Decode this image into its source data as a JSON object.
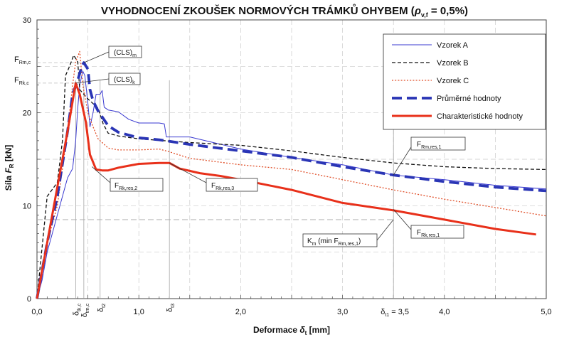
{
  "chart_data": {
    "type": "line",
    "title": "VYHODNOCENÍ ZKOUŠEK NORMOVÝCH TRÁMKŮ OHYBEM",
    "title_suffix": {
      "open": " (",
      "rho": "ρ",
      "rho_sub": "v,f",
      "tail": " = 0,5%)"
    },
    "xlabel": {
      "main": "Deformace ",
      "sym": "δ",
      "sym_sub": "t",
      "unit": " [mm]"
    },
    "ylabel": {
      "main": "Síla ",
      "sym": "F",
      "sym_sub": "R",
      "unit": " [kN]"
    },
    "xlim": [
      0,
      5
    ],
    "ylim": [
      0,
      30
    ],
    "x_ticks": [
      "0,0",
      "1,0",
      "2,0",
      "3,0",
      "4,0",
      "5,0"
    ],
    "y_ticks": [
      "0",
      "10",
      "20",
      "30"
    ],
    "grid": true,
    "legend_position": "top-right",
    "series": [
      {
        "name": "Vzorek A",
        "color": "#3a3ad0",
        "style": "solid-thin",
        "points": [
          [
            0,
            0
          ],
          [
            0.05,
            2
          ],
          [
            0.1,
            5
          ],
          [
            0.15,
            7
          ],
          [
            0.2,
            9
          ],
          [
            0.25,
            11
          ],
          [
            0.3,
            13
          ],
          [
            0.35,
            14
          ],
          [
            0.38,
            17
          ],
          [
            0.4,
            20.5
          ],
          [
            0.42,
            23
          ],
          [
            0.45,
            24.5
          ],
          [
            0.47,
            24
          ],
          [
            0.5,
            21
          ],
          [
            0.52,
            18.5
          ],
          [
            0.55,
            20
          ],
          [
            0.58,
            22
          ],
          [
            0.62,
            22
          ],
          [
            0.64,
            22.4
          ],
          [
            0.66,
            20.6
          ],
          [
            0.7,
            20.3
          ],
          [
            0.8,
            20.1
          ],
          [
            0.9,
            19.3
          ],
          [
            1.0,
            18.9
          ],
          [
            1.2,
            18.9
          ],
          [
            1.25,
            18.8
          ],
          [
            1.27,
            17.4
          ],
          [
            1.5,
            17.4
          ],
          [
            2.0,
            16.1
          ],
          [
            2.5,
            15.2
          ],
          [
            3.0,
            14.4
          ],
          [
            3.5,
            13.3
          ],
          [
            4.0,
            12.8
          ],
          [
            4.5,
            12.2
          ],
          [
            5.0,
            11.8
          ]
        ]
      },
      {
        "name": "Vzorek B",
        "color": "#111111",
        "style": "dashed",
        "points": [
          [
            0,
            0
          ],
          [
            0.1,
            11
          ],
          [
            0.2,
            12.5
          ],
          [
            0.25,
            17
          ],
          [
            0.28,
            24
          ],
          [
            0.32,
            25
          ],
          [
            0.36,
            26.2
          ],
          [
            0.4,
            25.5
          ],
          [
            0.42,
            22.5
          ],
          [
            0.5,
            21.5
          ],
          [
            0.6,
            20.5
          ],
          [
            0.65,
            18.8
          ],
          [
            0.7,
            17.8
          ],
          [
            0.8,
            17.5
          ],
          [
            1.0,
            17.2
          ],
          [
            1.5,
            16.8
          ],
          [
            2.0,
            16.5
          ],
          [
            2.5,
            15.9
          ],
          [
            3.0,
            15.2
          ],
          [
            3.5,
            14.6
          ],
          [
            4.0,
            14.2
          ],
          [
            4.5,
            14.0
          ],
          [
            5.0,
            13.9
          ]
        ]
      },
      {
        "name": "Vzorek C",
        "color": "#e0502a",
        "style": "dotted",
        "points": [
          [
            0,
            0
          ],
          [
            0.1,
            6
          ],
          [
            0.2,
            10
          ],
          [
            0.3,
            18
          ],
          [
            0.35,
            23
          ],
          [
            0.38,
            25.5
          ],
          [
            0.42,
            26.6
          ],
          [
            0.45,
            23
          ],
          [
            0.5,
            20
          ],
          [
            0.55,
            18.5
          ],
          [
            0.6,
            17.2
          ],
          [
            0.7,
            16.2
          ],
          [
            0.8,
            16.0
          ],
          [
            1.0,
            16.0
          ],
          [
            1.2,
            16.1
          ],
          [
            1.3,
            15.8
          ],
          [
            1.5,
            15.1
          ],
          [
            2.0,
            14.4
          ],
          [
            2.5,
            13.9
          ],
          [
            3.0,
            12.8
          ],
          [
            3.5,
            11.7
          ],
          [
            4.0,
            10.7
          ],
          [
            4.5,
            9.8
          ],
          [
            5.0,
            8.9
          ]
        ]
      },
      {
        "name": "Průměrné hodnoty",
        "color": "#2a35b5",
        "style": "dashed-thick",
        "points": [
          [
            0,
            0
          ],
          [
            0.1,
            6
          ],
          [
            0.2,
            11
          ],
          [
            0.3,
            18
          ],
          [
            0.35,
            22
          ],
          [
            0.4,
            23.5
          ],
          [
            0.44,
            25
          ],
          [
            0.46,
            25.4
          ],
          [
            0.5,
            24.7
          ],
          [
            0.52,
            22.5
          ],
          [
            0.55,
            21.3
          ],
          [
            0.6,
            20.2
          ],
          [
            0.7,
            18.6
          ],
          [
            0.8,
            17.9
          ],
          [
            1.0,
            17.3
          ],
          [
            1.2,
            17.1
          ],
          [
            1.5,
            16.6
          ],
          [
            2.0,
            15.9
          ],
          [
            2.5,
            15.2
          ],
          [
            3.0,
            14.2
          ],
          [
            3.5,
            13.3
          ],
          [
            4.0,
            12.6
          ],
          [
            4.5,
            12.0
          ],
          [
            5.0,
            11.6
          ]
        ]
      },
      {
        "name": "Charakteristické hodnoty",
        "color": "#e8301a",
        "style": "solid-thick",
        "points": [
          [
            0,
            0
          ],
          [
            0.1,
            6
          ],
          [
            0.2,
            12
          ],
          [
            0.3,
            18
          ],
          [
            0.38,
            23.2
          ],
          [
            0.42,
            22
          ],
          [
            0.48,
            19
          ],
          [
            0.52,
            15.5
          ],
          [
            0.58,
            13.9
          ],
          [
            0.64,
            13.8
          ],
          [
            0.7,
            13.8
          ],
          [
            0.8,
            14.1
          ],
          [
            0.9,
            14.3
          ],
          [
            1.0,
            14.5
          ],
          [
            1.2,
            14.6
          ],
          [
            1.3,
            14.6
          ],
          [
            1.4,
            14.0
          ],
          [
            1.6,
            13.5
          ],
          [
            1.8,
            13.2
          ],
          [
            2.0,
            12.8
          ],
          [
            2.5,
            11.7
          ],
          [
            3.0,
            10.3
          ],
          [
            3.5,
            9.5
          ],
          [
            4.0,
            8.5
          ],
          [
            4.5,
            7.5
          ],
          [
            4.9,
            6.9
          ]
        ]
      }
    ],
    "legend_entries": [
      "Vzorek A",
      "Vzorek B",
      "Vzorek C",
      "Průměrné hodnoty",
      "Charakteristické hodnoty"
    ],
    "y_named_levels": [
      {
        "main": "F",
        "sub": "Rm,c",
        "value": 25.4
      },
      {
        "main": "F",
        "sub": "Rk,c",
        "value": 23.2
      }
    ],
    "x_named_ticks": [
      {
        "main": "δ",
        "sub": "tk,c",
        "value": 0.38
      },
      {
        "main": "δ",
        "sub": "tm,c",
        "value": 0.46
      },
      {
        "main": "δ",
        "sub": "t2",
        "value": 0.62
      },
      {
        "main": "δ",
        "sub": "t3",
        "value": 1.3
      },
      {
        "main": "δ",
        "sub": "t1",
        "value": 3.5,
        "suffix": " = 3,5"
      }
    ],
    "annotations": [
      {
        "main": "(CLS)",
        "sub": "m"
      },
      {
        "main": "(CLS)",
        "sub": "k"
      },
      {
        "main": "F",
        "sub": "Rk,res,2"
      },
      {
        "main": "F",
        "sub": "Rk,res,3"
      },
      {
        "main": "F",
        "sub": "Rm,res,1"
      },
      {
        "main": "F",
        "sub": "Rk,res,1"
      },
      {
        "main": "K",
        "sub": "m",
        "tail": " (min F",
        "sub2": "Rm,res,1",
        "tail2": ")"
      }
    ],
    "reference_level": 8.5
  }
}
